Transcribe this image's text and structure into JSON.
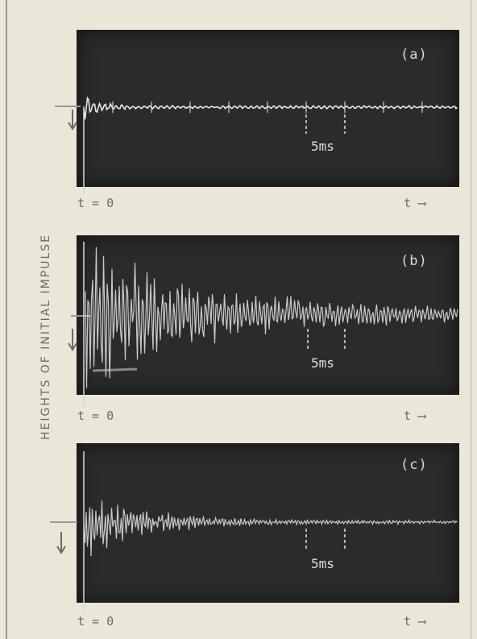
{
  "figure": {
    "y_axis_label": "HEIGHTS OF INITIAL IMPULSE",
    "panels": [
      {
        "id": "a",
        "label": "(a)",
        "scale_label": "5ms",
        "t0_label": "t = 0",
        "t_label": "t",
        "t_arrow": "⟶"
      },
      {
        "id": "b",
        "label": "(b)",
        "scale_label": "5ms",
        "t0_label": "t = 0",
        "t_label": "t",
        "t_arrow": "⟶"
      },
      {
        "id": "c",
        "label": "(c)",
        "scale_label": "5ms",
        "t0_label": "t = 0",
        "t_label": "t",
        "t_arrow": "⟶"
      }
    ]
  },
  "colors": {
    "paper": "#ebe7d8",
    "screen": "#2b2b2b",
    "trace": "#e8e8e8",
    "ink": "#6a6a66"
  }
}
